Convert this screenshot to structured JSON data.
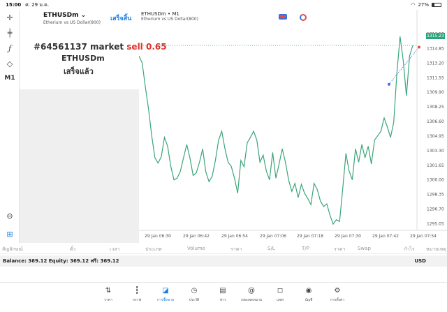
{
  "statusbar": {
    "time": "15:00",
    "date": "ศ. 29 ม.ค.",
    "battery": "27%",
    "battery_level": 0.27
  },
  "toolbar": {
    "timeframe": "M1"
  },
  "panel": {
    "symbol": "ETHUSDm",
    "description": "Etherium vs US Dollar(800)",
    "done_label": "เสร็จสิ้น",
    "order_text": "#64561137 market",
    "order_side": "sell 0.65",
    "order_symbol": "ETHUSDm",
    "order_status": "เสร็จแล้ว"
  },
  "chart": {
    "title": "ETHUSDm • M1",
    "subtitle": "Etherium vs US Dollar(800)",
    "current_price": "1315.23"
  },
  "chart_data": {
    "type": "line",
    "ylim": [
      1294.3,
      1317.8
    ],
    "y_ticks": [
      1316.5,
      1314.85,
      1313.2,
      1311.55,
      1309.9,
      1308.25,
      1306.6,
      1304.95,
      1303.3,
      1301.65,
      1300.0,
      1298.35,
      1296.7,
      1295.05
    ],
    "y_tick_labels": [
      "1316.50",
      "1314.85",
      "1313.20",
      "1311.55",
      "1309.90",
      "1308.25",
      "1306.60",
      "1304.95",
      "1303.30",
      "1301.65",
      "1300.00",
      "1298.35",
      "1296.70",
      "1295.05"
    ],
    "x_tick_labels": [
      "29 Jan 06:30",
      "29 Jan 06:42",
      "29 Jan 06:54",
      "29 Jan 07:06",
      "29 Jan 07:18",
      "29 Jan 07:30",
      "29 Jan 07:42",
      "29 Jan 07:54"
    ],
    "series": [
      {
        "color": "#3aa57a",
        "values": [
          1314.0,
          1313.2,
          1310.5,
          1308.0,
          1305.0,
          1302.5,
          1301.9,
          1302.6,
          1304.8,
          1303.8,
          1301.5,
          1300.0,
          1300.2,
          1301.0,
          1302.5,
          1304.0,
          1302.5,
          1300.5,
          1300.8,
          1302.0,
          1303.5,
          1300.9,
          1299.8,
          1300.4,
          1302.2,
          1304.5,
          1305.5,
          1303.5,
          1302.0,
          1301.5,
          1300.2,
          1298.5,
          1302.2,
          1301.5,
          1304.2,
          1304.8,
          1305.5,
          1304.5,
          1302.0,
          1302.8,
          1301.0,
          1300.0,
          1303.1,
          1300.2,
          1301.8,
          1303.5,
          1302.0,
          1300.0,
          1298.7,
          1299.6,
          1298.0,
          1299.5,
          1298.5,
          1297.9,
          1297.2,
          1299.6,
          1298.9,
          1297.6,
          1297.0,
          1297.3,
          1296.0,
          1295.0,
          1295.5,
          1295.3,
          1299.0,
          1303.0,
          1301.0,
          1300.0,
          1303.5,
          1302.0,
          1304.0,
          1302.5,
          1303.8,
          1301.8,
          1304.5,
          1305.0,
          1305.5,
          1307.0,
          1306.0,
          1304.8,
          1306.5,
          1312.0,
          1316.2,
          1313.5,
          1309.5,
          1314.0,
          1315.2
        ]
      }
    ],
    "order_arrow": {
      "from": 1310.8,
      "to": 1315.0
    }
  },
  "table": {
    "columns": [
      "สัญลักษณ์",
      "ตั๋ว",
      "เวลา",
      "ประเภท",
      "Volume",
      "ราคา",
      "S/L",
      "T/P",
      "ราคา",
      "Swap",
      "กำไร",
      "หมายเหตุ"
    ]
  },
  "balance": {
    "text": "Balance: 369.12 Equity: 369.12 ฟรี: 369.12",
    "currency": "USD"
  },
  "tabs": [
    {
      "label": "ราคา",
      "icon": "quotes-arrows-icon",
      "glyph": "⇅"
    },
    {
      "label": "กราฟ",
      "icon": "candles-icon",
      "glyph": "┇"
    },
    {
      "label": "การซื้อขาย",
      "icon": "trade-chart-icon",
      "glyph": "◪"
    },
    {
      "label": "ประวัติ",
      "icon": "history-clock-icon",
      "glyph": "◷"
    },
    {
      "label": "ข่าว",
      "icon": "news-book-icon",
      "glyph": "▤"
    },
    {
      "label": "กล่องจดหมาย",
      "icon": "mailbox-at-icon",
      "glyph": "@"
    },
    {
      "label": "แชท",
      "icon": "chat-bubble-icon",
      "glyph": "◻"
    },
    {
      "label": "บัญชี",
      "icon": "account-user-icon",
      "glyph": "◉"
    },
    {
      "label": "การตั้งค่า",
      "icon": "settings-gear-icon",
      "glyph": "⚙"
    }
  ],
  "active_tab": 2
}
